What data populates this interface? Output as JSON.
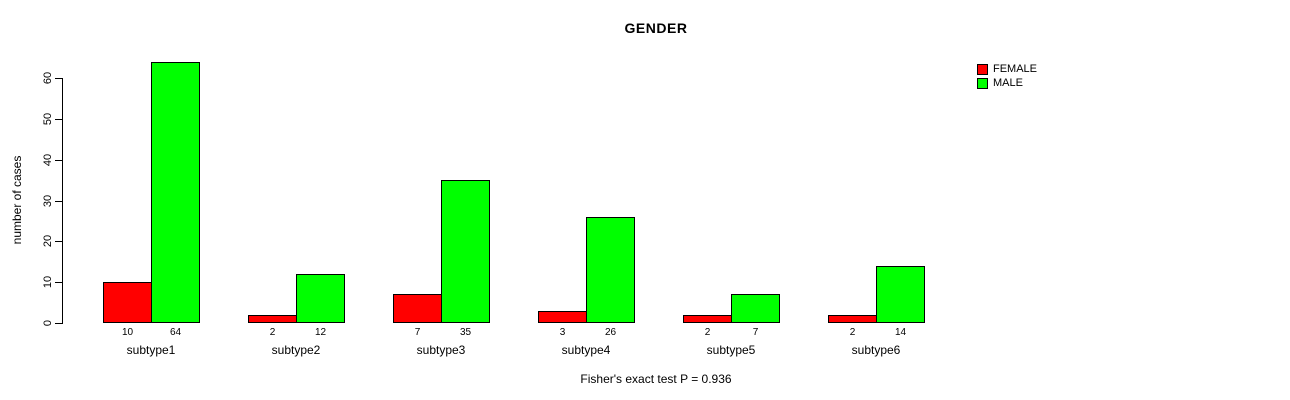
{
  "chart_data": {
    "type": "bar",
    "title": "GENDER",
    "ylabel": "number of cases",
    "xlabel": "",
    "caption": "Fisher's exact test P = 0.936",
    "categories": [
      "subtype1",
      "subtype2",
      "subtype3",
      "subtype4",
      "subtype5",
      "subtype6"
    ],
    "series": [
      {
        "name": "FEMALE",
        "color": "#ff0000",
        "values": [
          10,
          2,
          7,
          3,
          2,
          2
        ]
      },
      {
        "name": "MALE",
        "color": "#00ff00",
        "values": [
          64,
          12,
          35,
          26,
          7,
          14
        ]
      }
    ],
    "bar_value_labels": [
      [
        "10",
        "64"
      ],
      [
        "2",
        "12"
      ],
      [
        "7",
        "35"
      ],
      [
        "3",
        "26"
      ],
      [
        "2",
        "7"
      ],
      [
        "2",
        "14"
      ]
    ],
    "ylim": [
      0,
      60
    ],
    "yticks": [
      "0",
      "10",
      "20",
      "30",
      "40",
      "50",
      "60"
    ],
    "legend_position": "top-right",
    "grid": false,
    "background_color": "#ffffff",
    "axis_color": "#000000"
  }
}
